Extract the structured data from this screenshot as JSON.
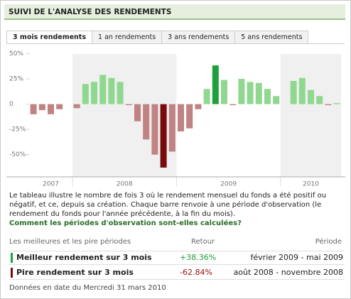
{
  "header": {
    "title": "SUIVI DE L'ANALYSE DES RENDEMENTS"
  },
  "tabs": [
    "3 mois rendements",
    "1 an rendements",
    "3 ans rendements",
    "5 ans rendements"
  ],
  "chart_data": {
    "type": "bar",
    "periods": [
      {
        "label": "2007",
        "values": [
          -10,
          -6,
          -10,
          -5,
          null
        ]
      },
      {
        "label": "2008",
        "values": [
          -4,
          20,
          22,
          29,
          26,
          22,
          -1,
          -17,
          -35,
          -50,
          -62.84,
          -47
        ]
      },
      {
        "label": "2009",
        "values": [
          -27,
          -24,
          -5,
          15,
          38.36,
          24,
          -1,
          25,
          22,
          21,
          15,
          8
        ]
      },
      {
        "label": "2010",
        "values": [
          null,
          23,
          26,
          14,
          8,
          -1,
          1
        ]
      }
    ],
    "colors": {
      "positive": "#90d890",
      "negative": "#c08282",
      "best": "#1ea03c",
      "worst": "#780c0c"
    },
    "ylim": [
      -72,
      56
    ],
    "yticks": [
      {
        "value": 50,
        "label": "50%"
      },
      {
        "value": 25,
        "label": "25%"
      },
      0,
      {
        "value": -25,
        "label": "-25%"
      },
      {
        "value": -50,
        "label": "-50%"
      }
    ]
  },
  "description": "Le tableau illustre le nombre de fois 3 où le rendement mensuel du fonds a été positif ou négatif, et ce, depuis sa création. Chaque barre renvoie à une période d'observation (le rendement du fonds pour l'année précédente, à la fin du mois).",
  "link": "Comment les périodes d'observation sont-elles calculées?",
  "table": {
    "header": [
      "Les meilleures et les pire périodes",
      "Retour",
      "Période"
    ],
    "rows": [
      [
        "Meilleur rendement sur 3 mois",
        "+38.36%",
        "février 2009 - mai 2009"
      ],
      [
        "Pire rendement sur 3 mois",
        "-62.84%",
        "août 2008 - novembre 2008"
      ]
    ]
  },
  "footer": "Données en date du Mercredi 31 mars 2010"
}
